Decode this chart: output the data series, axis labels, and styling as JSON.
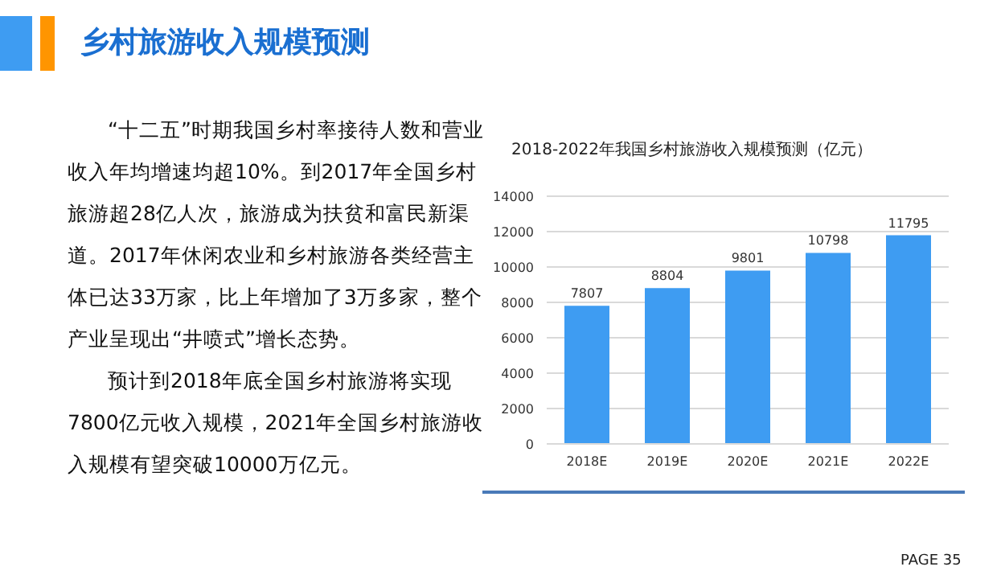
{
  "chart_data": {
    "type": "bar",
    "title": "乡村旅游收入规模预测",
    "subtitle": "2018-2022年我国乡村旅游收入规模预测（亿元）",
    "categories": [
      "2018E",
      "2019E",
      "2020E",
      "2021E",
      "2022E"
    ],
    "values": [
      7807,
      8804,
      9801,
      10798,
      11795
    ],
    "color": "#3e9cf2",
    "ylim": [
      0,
      14000
    ],
    "yticks": [
      0,
      2000,
      4000,
      6000,
      8000,
      10000,
      12000,
      14000
    ],
    "grid": "y",
    "data_labels": true,
    "annotations": [
      "“十二五”时期我国乡村率接待人数和营业收入年均增速均超10%。到2017年全国乡村旅游超28亿人次，旅游成为扶贫和富民新渠道。2017年休闲农业和乡村旅游各类经营主体已达33万家，比上年增加了3万多家，整个产业呈现出“井喷式”增长态势。",
      "预计到2018年底全国乡村旅游将实现7800亿元收入规模，2021年全国乡村旅游收入规模有望突破10000万亿元。",
      "PAGE  35"
    ]
  }
}
